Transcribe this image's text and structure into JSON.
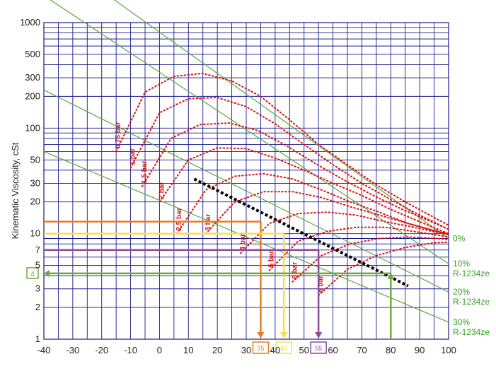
{
  "chart_data": {
    "type": "line",
    "title": "",
    "xlabel": "",
    "ylabel": "Kinematic Viscosity, cSt",
    "xlim": [
      -40,
      100
    ],
    "ylim": [
      1,
      1000
    ],
    "yscale": "log",
    "grid": true,
    "x_tick_labels": [
      "-40",
      "-30",
      "-20",
      "-10",
      "0",
      "10",
      "20",
      "30",
      "40",
      "50",
      "60",
      "70",
      "80",
      "90",
      "100"
    ],
    "y_tick_labels": [
      {
        "value": 1000,
        "label": "1000"
      },
      {
        "value": 500,
        "label": "500"
      },
      {
        "value": 300,
        "label": "300"
      },
      {
        "value": 200,
        "label": "200"
      },
      {
        "value": 100,
        "label": "100"
      },
      {
        "value": 50,
        "label": "50"
      },
      {
        "value": 30,
        "label": "30"
      },
      {
        "value": 20,
        "label": "20"
      },
      {
        "value": 10,
        "label": "10"
      },
      {
        "value": 7,
        "label": "7"
      },
      {
        "value": 5,
        "label": "5"
      },
      {
        "value": 3,
        "label": "3"
      },
      {
        "value": 2,
        "label": "2"
      },
      {
        "value": 1,
        "label": "1"
      }
    ],
    "colors": {
      "grid": "#1a1a8c",
      "concentration": "#5aa83c",
      "pressure": "#e01010",
      "dashed": "#000000",
      "orange": "#e87d1e",
      "yellow": "#f5e050",
      "purple": "#8b4a9c",
      "green": "#6aaa3a"
    },
    "series": [
      {
        "name": "0%",
        "x": [
          -20,
          100
        ],
        "y": [
          2000,
          9
        ]
      },
      {
        "name": "10%\nR-1234ze",
        "x": [
          -40,
          100
        ],
        "y": [
          1800,
          5.2
        ]
      },
      {
        "name": "20%\nR-1234ze",
        "x": [
          -40,
          100
        ],
        "y": [
          230,
          2.8
        ]
      },
      {
        "name": "30%\nR-1234ze",
        "x": [
          -40,
          100
        ],
        "y": [
          60,
          1.45
        ]
      }
    ],
    "pressure_curves": [
      {
        "label": "0.75 bar",
        "x": [
          -15,
          -5,
          5,
          15,
          25,
          35,
          45,
          55,
          65,
          75,
          85,
          100
        ],
        "y": [
          60,
          220,
          310,
          330,
          280,
          200,
          120,
          70,
          45,
          29,
          20,
          12
        ]
      },
      {
        "label": "1 bar",
        "x": [
          -10,
          0,
          10,
          20,
          30,
          40,
          50,
          60,
          70,
          80,
          90,
          100
        ],
        "y": [
          42,
          140,
          190,
          195,
          160,
          110,
          70,
          45,
          30,
          21,
          15,
          11
        ]
      },
      {
        "label": "1.5 bar",
        "x": [
          -6,
          4,
          14,
          24,
          34,
          44,
          54,
          64,
          74,
          84,
          94,
          100
        ],
        "y": [
          28,
          80,
          108,
          112,
          95,
          68,
          46,
          32,
          23,
          17,
          13,
          11
        ]
      },
      {
        "label": "2 bar",
        "x": [
          0,
          10,
          20,
          30,
          40,
          50,
          60,
          70,
          80,
          90,
          100
        ],
        "y": [
          20,
          50,
          65,
          64,
          52,
          40,
          30,
          23,
          17,
          13,
          10
        ]
      },
      {
        "label": "2.5 bar",
        "x": [
          6,
          16,
          26,
          36,
          46,
          56,
          66,
          76,
          86,
          96,
          100
        ],
        "y": [
          10,
          26,
          35,
          37,
          33,
          26,
          20,
          16,
          12.5,
          10.5,
          10
        ]
      },
      {
        "label": "3 bar",
        "x": [
          16,
          26,
          36,
          46,
          56,
          66,
          76,
          86,
          96,
          100
        ],
        "y": [
          10,
          20,
          25,
          25,
          22,
          18,
          15,
          12.5,
          10.5,
          10
        ]
      },
      {
        "label": "4 bar",
        "x": [
          28,
          38,
          48,
          58,
          68,
          78,
          88,
          98,
          100
        ],
        "y": [
          6.5,
          12.5,
          15.5,
          16,
          15,
          13,
          11.5,
          10,
          9.8
        ]
      },
      {
        "label": "5 bar",
        "x": [
          38,
          48,
          58,
          68,
          78,
          88,
          98,
          100
        ],
        "y": [
          4.5,
          8.5,
          10.5,
          11.5,
          11.5,
          10.5,
          9.5,
          9.3
        ]
      },
      {
        "label": "6 bar",
        "x": [
          46,
          56,
          66,
          76,
          86,
          96,
          100
        ],
        "y": [
          3.5,
          6.2,
          8,
          9,
          9.3,
          9,
          8.8
        ]
      },
      {
        "label": "8 bar",
        "x": [
          55,
          65,
          75,
          85,
          95,
          100
        ],
        "y": [
          2.6,
          4.6,
          6.2,
          7.4,
          8.2,
          8.3
        ]
      }
    ],
    "dashed_line": {
      "x": [
        12,
        86
      ],
      "y": [
        33,
        3.2
      ]
    },
    "annotations": [
      {
        "label": "35",
        "color": "orange",
        "x": 35,
        "y": 13
      },
      {
        "label": "43",
        "color": "yellow",
        "x": 43,
        "y": 10
      },
      {
        "label": "55",
        "color": "purple",
        "x": 55,
        "y": 7
      },
      {
        "label": "4",
        "color": "green",
        "x": 80,
        "y": 4.2
      }
    ]
  }
}
